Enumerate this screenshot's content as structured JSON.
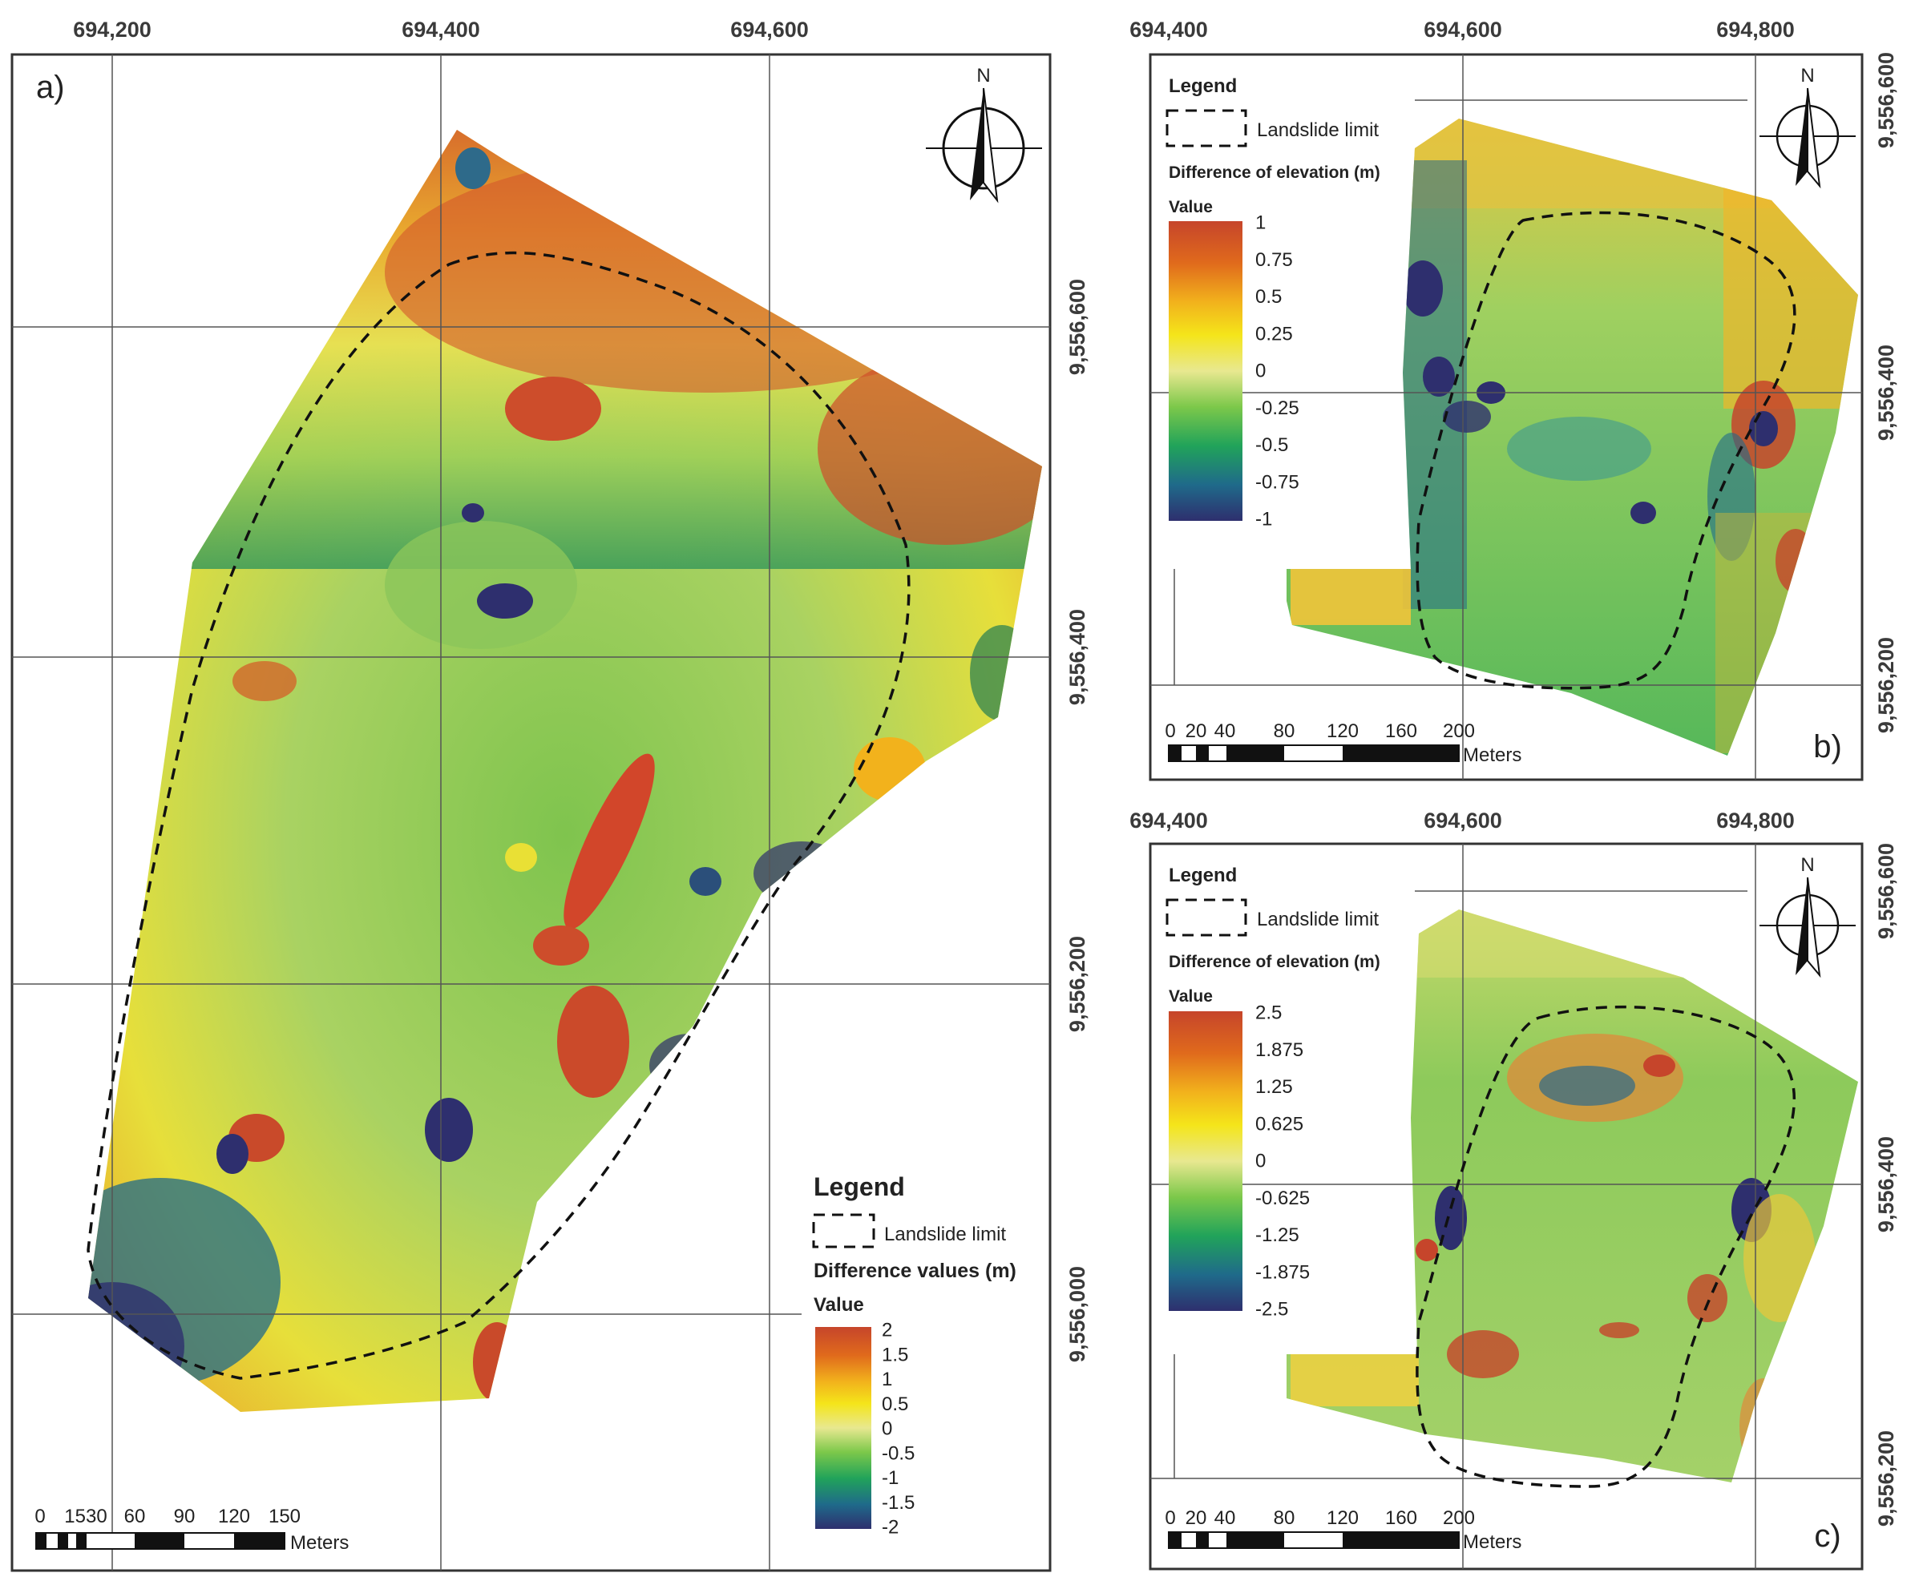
{
  "figure": {
    "panels": [
      {
        "id": "a",
        "label": "a)",
        "top_coords": [
          "694,200",
          "694,400",
          "694,600"
        ],
        "side_coords": [
          "9,556,600",
          "9,556,400",
          "9,556,200",
          "9,556,000"
        ],
        "north": "N",
        "legend": {
          "title": "Legend",
          "limit_label": "Landslide limit",
          "diff_title": "Difference values (m)",
          "value_label": "Value",
          "ticks": [
            "2",
            "1.5",
            "1",
            "0.5",
            "0",
            "-0.5",
            "-1",
            "-1.5",
            "-2"
          ]
        },
        "scale": {
          "labels": [
            "0",
            "1530",
            "60",
            "90",
            "120",
            "150"
          ],
          "unit": "Meters"
        }
      },
      {
        "id": "b",
        "label": "b)",
        "top_coords": [
          "694,400",
          "694,600",
          "694,800"
        ],
        "side_coords": [
          "9,556,600",
          "9,556,400",
          "9,556,200"
        ],
        "north": "N",
        "legend": {
          "title": "Legend",
          "limit_label": "Landslide limit",
          "diff_title": "Difference of elevation (m)",
          "value_label": "Value",
          "ticks": [
            "1",
            "0.75",
            "0.5",
            "0.25",
            "0",
            "-0.25",
            "-0.5",
            "-0.75",
            "-1"
          ]
        },
        "scale": {
          "labels": [
            "0",
            "20",
            "40",
            "80",
            "120",
            "160",
            "200"
          ],
          "unit": "Meters"
        }
      },
      {
        "id": "c",
        "label": "c)",
        "top_coords": [
          "694,400",
          "694,600",
          "694,800"
        ],
        "side_coords": [
          "9,556,600",
          "9,556,400",
          "9,556,200"
        ],
        "north": "N",
        "legend": {
          "title": "Legend",
          "limit_label": "Landslide limit",
          "diff_title": "Difference of elevation (m)",
          "value_label": "Value",
          "ticks": [
            "2.5",
            "1.875",
            "1.25",
            "0.625",
            "0",
            "-0.625",
            "-1.25",
            "-1.875",
            "-2.5"
          ]
        },
        "scale": {
          "labels": [
            "0",
            "20",
            "40",
            "80",
            "120",
            "160",
            "200"
          ],
          "unit": "Meters"
        }
      }
    ],
    "colors": {
      "ramp": [
        "#2e2f6e",
        "#1f6a8a",
        "#21a35a",
        "#7cc84a",
        "#e8e890",
        "#f4e51a",
        "#f2b21c",
        "#e06a1c",
        "#c6452b"
      ]
    }
  }
}
